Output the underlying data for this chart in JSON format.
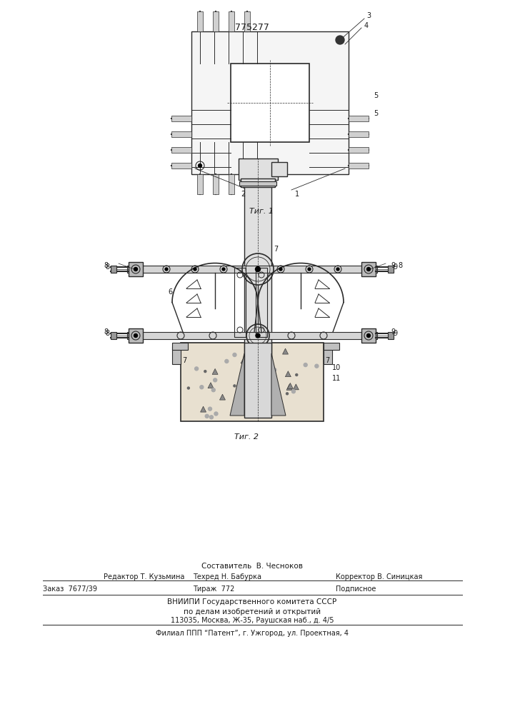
{
  "patent_number": "775277",
  "fig1_label": "Τиг. 1",
  "fig2_label": "Τиг. 2",
  "footer_line1": "Составитель  В. Чесноков",
  "footer_line2_left": "Редактор Т. Кузьмина",
  "footer_line2_mid": "Техред Н. Бабурка",
  "footer_line2_right": "Корректор В. Синицкая",
  "footer_line3_left": "Заказ  7677/39",
  "footer_line3_mid": "Тираж  772",
  "footer_line3_right": "Подписное",
  "footer_line4": "ВНИИПИ Государственного комитета СССР",
  "footer_line5": "по делам изобретений и открытий",
  "footer_line6": "113035, Москва, Ж-35, Раушская наб., д. 4/5",
  "footer_line7": "Филиал ППП “Патент”, г. Ужгород, ул. Проектная, 4",
  "bg_color": "#ffffff",
  "line_color": "#2a2a2a",
  "text_color": "#1a1a1a"
}
